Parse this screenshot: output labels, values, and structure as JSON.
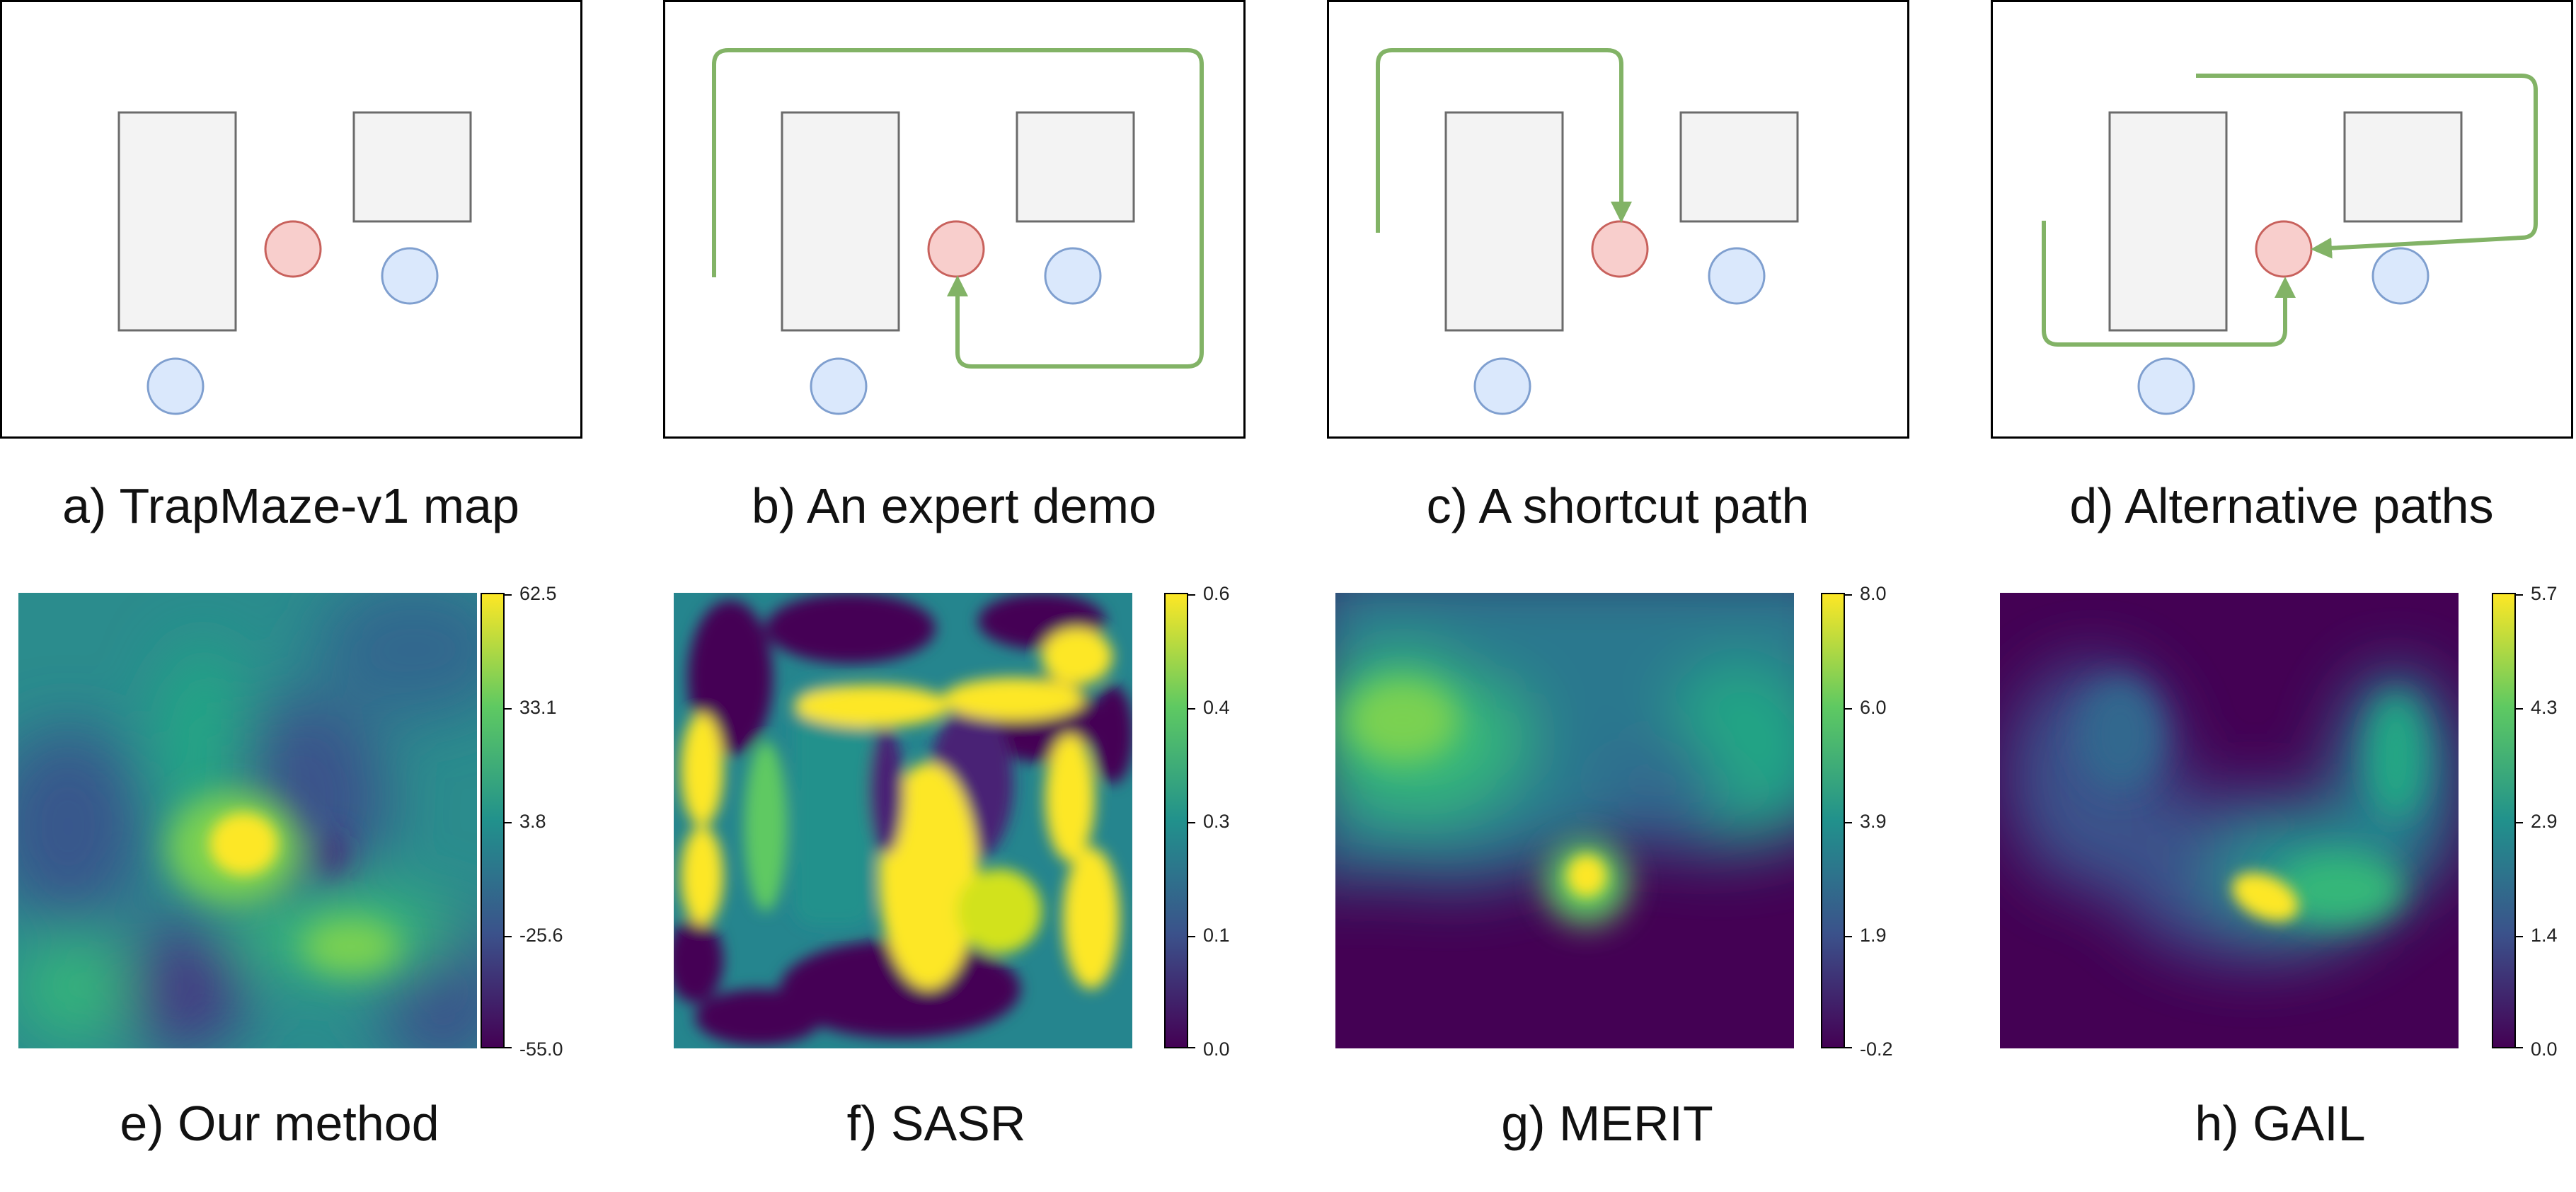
{
  "top_captions": [
    "a) TrapMaze-v1 map",
    "b) An expert demo",
    "c) A shortcut path",
    "d) Alternative paths"
  ],
  "bottom_captions": [
    "e) Our method",
    "f) SASR",
    "g) MERIT",
    "h) GAIL"
  ],
  "colorbars": [
    {
      "ticks": [
        "62.5",
        "33.1",
        "3.8",
        "-25.6",
        "-55.0"
      ]
    },
    {
      "ticks": [
        "0.6",
        "0.4",
        "0.3",
        "0.1",
        "0.0"
      ]
    },
    {
      "ticks": [
        "8.0",
        "6.0",
        "3.9",
        "1.9",
        "-0.2"
      ]
    },
    {
      "ticks": [
        "5.7",
        "4.3",
        "2.9",
        "1.4",
        "0.0"
      ]
    }
  ],
  "colors": {
    "wall_fill": "#f3f3f3",
    "wall_stroke": "#6b6b6b",
    "goal_fill": "#f8cecc",
    "goal_stroke": "#c8615c",
    "agent_fill": "#dae8fc",
    "agent_stroke": "#7f9fcf",
    "path": "#82b366",
    "viridis": [
      "#440154",
      "#3b528b",
      "#21918c",
      "#5ec962",
      "#fde725"
    ]
  }
}
